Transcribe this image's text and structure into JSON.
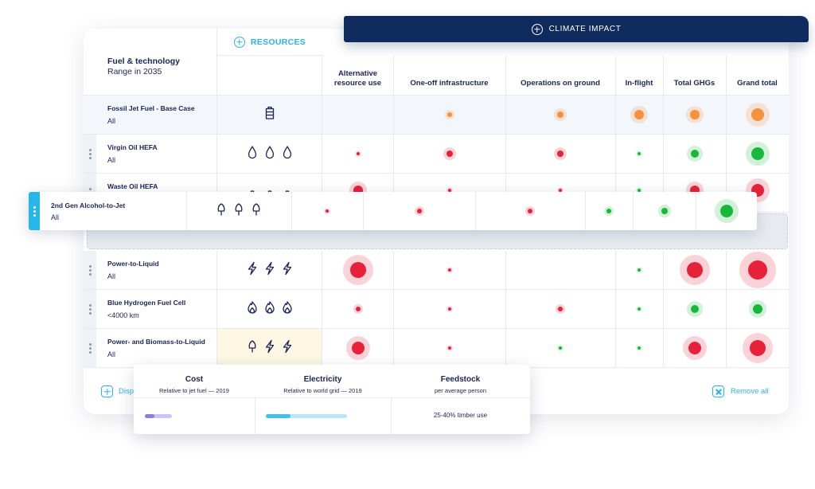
{
  "header": {
    "fuel_title": "Fuel & technology",
    "fuel_subtitle": "Range in 2035",
    "resources_tab": "RESOURCES",
    "climate_tab": "CLIMATE IMPACT",
    "columns": [
      "Alternative resource use",
      "One-off infrastructure",
      "Operations on ground",
      "In-flight",
      "Total GHGs",
      "Grand total"
    ]
  },
  "colors": {
    "accent": "#2bb3e6",
    "navy": "#0f2a5c",
    "red": "#e8213a",
    "green": "#18b83a",
    "orange": "#f7913d"
  },
  "rows": [
    {
      "name": "Fossil Jet Fuel - Base Case",
      "sub": "All",
      "icon": "jerrycan-icon",
      "icon_count": 1,
      "dots": [
        null,
        {
          "c": "orange",
          "s": 2
        },
        {
          "c": "orange",
          "s": 3
        },
        {
          "c": "orange",
          "s": 5
        },
        {
          "c": "orange",
          "s": 5
        },
        {
          "c": "orange",
          "s": 6
        }
      ]
    },
    {
      "name": "Virgin Oil HEFA",
      "sub": "All",
      "icon": "drop-icon",
      "icon_count": 3,
      "dots": [
        {
          "c": "red",
          "s": 1
        },
        {
          "c": "red",
          "s": 3
        },
        {
          "c": "red",
          "s": 3
        },
        {
          "c": "green",
          "s": 1
        },
        {
          "c": "green",
          "s": 4
        },
        {
          "c": "green",
          "s": 6
        }
      ]
    },
    {
      "name": "Waste Oil HEFA",
      "sub": "",
      "icon": "jerrycan-small-icon",
      "icon_count": 3,
      "dots": [
        {
          "c": "red",
          "s": 5
        },
        {
          "c": "red",
          "s": 1
        },
        {
          "c": "red",
          "s": 1
        },
        {
          "c": "green",
          "s": 1
        },
        {
          "c": "red",
          "s": 5
        },
        {
          "c": "red",
          "s": 6
        }
      ]
    },
    {
      "name": "Power-to-Liquid",
      "sub": "All",
      "icon": "lightning-icon",
      "icon_count": 3,
      "dots": [
        {
          "c": "red",
          "s": 7
        },
        {
          "c": "red",
          "s": 1
        },
        null,
        {
          "c": "green",
          "s": 1
        },
        {
          "c": "red",
          "s": 7
        },
        {
          "c": "red",
          "s": 8
        }
      ]
    },
    {
      "name": "Blue Hydrogen Fuel Cell",
      "sub": "<4000 km",
      "icon": "flame-icon",
      "icon_count": 3,
      "dots": [
        {
          "c": "red",
          "s": 2
        },
        {
          "c": "red",
          "s": 1
        },
        {
          "c": "red",
          "s": 2
        },
        {
          "c": "green",
          "s": 1
        },
        {
          "c": "green",
          "s": 4
        },
        {
          "c": "green",
          "s": 5
        }
      ]
    },
    {
      "name": "Power- and Biomass-to-Liquid",
      "sub": "All",
      "icon": "tree-lightning-icon",
      "icon_count": 3,
      "dots": [
        {
          "c": "red",
          "s": 6
        },
        {
          "c": "red",
          "s": 1
        },
        {
          "c": "green",
          "s": 1
        },
        {
          "c": "green",
          "s": 1
        },
        {
          "c": "red",
          "s": 6
        },
        {
          "c": "red",
          "s": 7
        }
      ]
    }
  ],
  "drag_row": {
    "name": "2nd Gen Alcohol-to-Jet",
    "sub": "All",
    "icon": "tree-icon",
    "icon_count": 3,
    "dots": [
      {
        "c": "red",
        "s": 1
      },
      {
        "c": "red",
        "s": 2
      },
      {
        "c": "red",
        "s": 2
      },
      {
        "c": "green",
        "s": 2
      },
      {
        "c": "green",
        "s": 3
      },
      {
        "c": "green",
        "s": 6
      }
    ]
  },
  "footer": {
    "display_label": "Disp",
    "remove_label": "Remove all"
  },
  "popup": {
    "columns": [
      {
        "title": "Cost",
        "subtitle": "Relative to jet fuel — 2019",
        "bar_fraction": 0.3,
        "bar_color": "#8580e0",
        "bar_track": "#c9c6f3",
        "text": ""
      },
      {
        "title": "Electricity",
        "subtitle": "Relative to world grid — 2019",
        "bar_fraction": 0.3,
        "bar_color": "#3fc2eb",
        "bar_track": "#b7e7f8",
        "text": ""
      },
      {
        "title": "Feedstock",
        "subtitle": "per average person",
        "bar_fraction": null,
        "bar_color": "",
        "bar_track": "",
        "text": "25-40% timber use"
      }
    ]
  }
}
